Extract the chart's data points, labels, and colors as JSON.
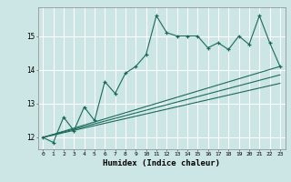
{
  "title": "",
  "xlabel": "Humidex (Indice chaleur)",
  "ylabel": "",
  "bg_color": "#cce5e5",
  "grid_color": "#ffffff",
  "line_color": "#1a6b5a",
  "x_data": [
    0,
    1,
    2,
    3,
    4,
    5,
    6,
    7,
    8,
    9,
    10,
    11,
    12,
    13,
    14,
    15,
    16,
    17,
    18,
    19,
    20,
    21,
    22,
    23
  ],
  "main_line": [
    12.0,
    11.85,
    12.6,
    12.2,
    12.9,
    12.5,
    13.65,
    13.3,
    13.9,
    14.1,
    14.45,
    15.6,
    15.1,
    15.0,
    15.0,
    15.0,
    14.65,
    14.8,
    14.6,
    15.0,
    14.75,
    15.6,
    14.8,
    14.1
  ],
  "trend_line1_x": [
    0,
    23
  ],
  "trend_line1_y": [
    12.0,
    14.1
  ],
  "trend_line2_x": [
    0,
    23
  ],
  "trend_line2_y": [
    12.0,
    13.85
  ],
  "trend_line3_x": [
    0,
    23
  ],
  "trend_line3_y": [
    12.0,
    13.6
  ],
  "ylim": [
    11.65,
    15.85
  ],
  "xlim": [
    -0.5,
    23.5
  ],
  "yticks": [
    12,
    13,
    14,
    15
  ],
  "xticks": [
    0,
    1,
    2,
    3,
    4,
    5,
    6,
    7,
    8,
    9,
    10,
    11,
    12,
    13,
    14,
    15,
    16,
    17,
    18,
    19,
    20,
    21,
    22,
    23
  ]
}
